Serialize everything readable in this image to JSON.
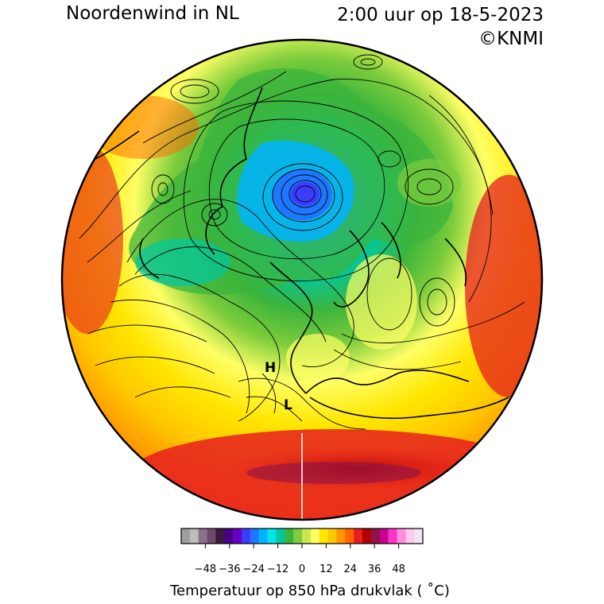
{
  "header": {
    "title": "Noordenwind in NL",
    "datetime": "2:00 uur op 18-5-2023",
    "credit": "©KNMI"
  },
  "map": {
    "projection": "orthographic northern hemisphere",
    "pressure_labels": [
      {
        "text": "H",
        "kind": "high"
      },
      {
        "text": "L",
        "kind": "low"
      }
    ]
  },
  "colorbar": {
    "title": "Temperatuur op 850 hPa drukvlak ( ˚C)",
    "range": [
      -60,
      60
    ],
    "ticks": [
      "−48",
      "−36",
      "−24",
      "−12",
      "0",
      "12",
      "24",
      "36",
      "48"
    ],
    "tick_values": [
      -48,
      -36,
      -24,
      -12,
      0,
      12,
      24,
      36,
      48
    ],
    "colors": [
      "#9e9e9e",
      "#bdbdbd",
      "#8c6f8c",
      "#6e4a6e",
      "#3d1a3d",
      "#4b0082",
      "#6a00c8",
      "#3c3cff",
      "#1e78ff",
      "#00b4ff",
      "#00e5e5",
      "#00c8a0",
      "#3cb43c",
      "#7ccc3c",
      "#c8e650",
      "#ffff66",
      "#ffe600",
      "#ffc800",
      "#ff9600",
      "#ff6400",
      "#e61e1e",
      "#b40000",
      "#8c1446",
      "#c80096",
      "#ff32c8",
      "#ff8cdc",
      "#ffc8ee",
      "#f0e6f0"
    ]
  }
}
